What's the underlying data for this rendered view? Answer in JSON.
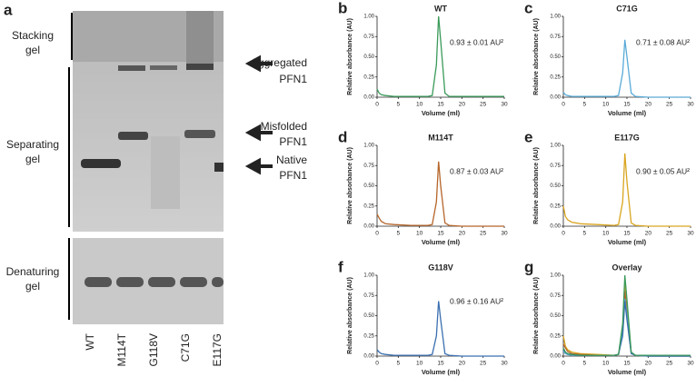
{
  "gel": {
    "panel_label": "a",
    "left_labels": [
      [
        "Stacking",
        "gel"
      ],
      [
        "Separating",
        "gel"
      ],
      [
        "Denaturing",
        "gel"
      ]
    ],
    "right_labels": [
      [
        "Aggregated",
        "PFN1"
      ],
      [
        "Misfolded",
        "PFN1"
      ],
      [
        "Native",
        "PFN1"
      ]
    ],
    "lanes": [
      "WT",
      "M114T",
      "G118V",
      "C71G",
      "E117G"
    ]
  },
  "chart_data": [
    {
      "type": "line",
      "panel_label": "b",
      "title": "WT",
      "annotation": "0.93 ± 0.01 AU²",
      "x_label": "Volume (ml)",
      "y_label": "Relative absorbance (AU)",
      "x": [
        0,
        0.5,
        1,
        2,
        4,
        8,
        12,
        13,
        14,
        14.5,
        15,
        16,
        17,
        20,
        25,
        30
      ],
      "color": "#3a9a5a",
      "values": [
        0.1,
        0.05,
        0.03,
        0.02,
        0.01,
        0.01,
        0.01,
        0.02,
        0.4,
        1.0,
        0.7,
        0.05,
        0.01,
        0.01,
        0.01,
        0.01
      ],
      "xlim": [
        0,
        30
      ],
      "xticks": [
        0,
        5,
        10,
        15,
        20,
        25,
        30
      ],
      "ylim": [
        0,
        1
      ],
      "yticks": [
        {
          "value": 0,
          "label": "0.00"
        },
        {
          "value": 0.25,
          "label": "0.25"
        },
        {
          "value": 0.5,
          "label": "0.50"
        },
        {
          "value": 0.75,
          "label": "0.75"
        },
        {
          "value": 1,
          "label": "1.00"
        }
      ]
    },
    {
      "type": "line",
      "panel_label": "c",
      "title": "C71G",
      "annotation": "0.71 ± 0.08 AU²",
      "x_label": "Volume (ml)",
      "y_label": "Relative absorbance (AU)",
      "x": [
        0,
        0.5,
        1,
        2,
        4,
        8,
        12,
        13,
        14,
        14.5,
        15,
        16,
        17,
        20,
        25,
        30
      ],
      "color": "#5aaad8",
      "values": [
        0.06,
        0.03,
        0.02,
        0.01,
        0.01,
        0.01,
        0.01,
        0.02,
        0.3,
        0.71,
        0.5,
        0.05,
        0.01,
        0,
        0,
        0
      ],
      "xlim": [
        0,
        30
      ],
      "xticks": [
        0,
        5,
        10,
        15,
        20,
        25,
        30
      ],
      "ylim": [
        0,
        1
      ],
      "yticks": [
        {
          "value": 0,
          "label": "0.00"
        },
        {
          "value": 0.25,
          "label": "0.25"
        },
        {
          "value": 0.5,
          "label": "0.50"
        },
        {
          "value": 0.75,
          "label": "0.75"
        },
        {
          "value": 1,
          "label": "1.00"
        }
      ]
    },
    {
      "type": "line",
      "panel_label": "d",
      "title": "M114T",
      "annotation": "0.87 ± 0.03 AU²",
      "x_label": "Volume (ml)",
      "y_label": "Relative absorbance (AU)",
      "x": [
        0,
        0.5,
        1,
        2,
        4,
        8,
        12,
        13,
        14,
        14.5,
        15,
        16,
        17,
        20,
        25,
        30
      ],
      "color": "#b5652a",
      "values": [
        0.15,
        0.1,
        0.06,
        0.03,
        0.02,
        0.01,
        0.01,
        0.02,
        0.3,
        0.8,
        0.5,
        0.04,
        0.01,
        0,
        0,
        0
      ],
      "xlim": [
        0,
        30
      ],
      "xticks": [
        0,
        5,
        10,
        15,
        20,
        25,
        30
      ],
      "ylim": [
        0,
        1
      ],
      "yticks": [
        {
          "value": 0,
          "label": "0.00"
        },
        {
          "value": 0.25,
          "label": "0.25"
        },
        {
          "value": 0.5,
          "label": "0.50"
        },
        {
          "value": 0.75,
          "label": "0.75"
        },
        {
          "value": 1,
          "label": "1.00"
        }
      ]
    },
    {
      "type": "line",
      "panel_label": "e",
      "title": "E117G",
      "annotation": "0.90 ± 0.05 AU²",
      "x_label": "Volume (ml)",
      "y_label": "Relative absorbance (AU)",
      "x": [
        0,
        0.5,
        1,
        2,
        4,
        8,
        12,
        13,
        14,
        14.5,
        15,
        16,
        17,
        20,
        25,
        30
      ],
      "color": "#d9a520",
      "values": [
        0.25,
        0.12,
        0.08,
        0.05,
        0.03,
        0.02,
        0.01,
        0.02,
        0.3,
        0.9,
        0.55,
        0.04,
        0.01,
        0,
        0,
        0
      ],
      "xlim": [
        0,
        30
      ],
      "xticks": [
        0,
        5,
        10,
        15,
        20,
        25,
        30
      ],
      "ylim": [
        0,
        1
      ],
      "yticks": [
        {
          "value": 0,
          "label": "0.00"
        },
        {
          "value": 0.25,
          "label": "0.25"
        },
        {
          "value": 0.5,
          "label": "0.50"
        },
        {
          "value": 0.75,
          "label": "0.75"
        },
        {
          "value": 1,
          "label": "1.00"
        }
      ]
    },
    {
      "type": "line",
      "panel_label": "f",
      "title": "G118V",
      "annotation": "0.96 ± 0.16 AU²",
      "x_label": "Volume (ml)",
      "y_label": "Relative absorbance (AU)",
      "x": [
        0,
        0.5,
        1,
        2,
        4,
        8,
        12,
        13,
        14,
        14.5,
        15,
        16,
        17,
        20,
        25,
        30
      ],
      "color": "#3a6fb0",
      "values": [
        0.08,
        0.05,
        0.03,
        0.02,
        0.01,
        0.01,
        0.01,
        0.02,
        0.25,
        0.68,
        0.45,
        0.03,
        0.01,
        0,
        0,
        0
      ],
      "xlim": [
        0,
        30
      ],
      "xticks": [
        0,
        5,
        10,
        15,
        20,
        25,
        30
      ],
      "ylim": [
        0,
        1
      ],
      "yticks": [
        {
          "value": 0,
          "label": "0.00"
        },
        {
          "value": 0.25,
          "label": "0.25"
        },
        {
          "value": 0.5,
          "label": "0.50"
        },
        {
          "value": 0.75,
          "label": "0.75"
        },
        {
          "value": 1,
          "label": "1.00"
        }
      ]
    },
    {
      "type": "line",
      "panel_label": "g",
      "title": "Overlay",
      "x_label": "Volume (ml)",
      "y_label": "Relative absorbance (AU)",
      "x": [
        0,
        0.5,
        1,
        2,
        4,
        8,
        12,
        13,
        14,
        14.5,
        15,
        16,
        17,
        20,
        25,
        30
      ],
      "series": [
        {
          "color": "#d9a520",
          "values": [
            0.25,
            0.12,
            0.08,
            0.05,
            0.03,
            0.02,
            0.01,
            0.02,
            0.3,
            0.9,
            0.55,
            0.04,
            0.01,
            0,
            0,
            0
          ]
        },
        {
          "color": "#b5652a",
          "values": [
            0.15,
            0.1,
            0.06,
            0.03,
            0.02,
            0.01,
            0.01,
            0.02,
            0.3,
            0.8,
            0.5,
            0.04,
            0.01,
            0,
            0,
            0
          ]
        },
        {
          "color": "#5aaad8",
          "values": [
            0.06,
            0.03,
            0.02,
            0.01,
            0.01,
            0.01,
            0.01,
            0.02,
            0.3,
            0.71,
            0.5,
            0.05,
            0.01,
            0,
            0,
            0
          ]
        },
        {
          "color": "#3a6fb0",
          "values": [
            0.08,
            0.05,
            0.03,
            0.02,
            0.01,
            0.01,
            0.01,
            0.02,
            0.25,
            0.68,
            0.45,
            0.03,
            0.01,
            0,
            0,
            0
          ]
        },
        {
          "color": "#3a9a5a",
          "values": [
            0.1,
            0.05,
            0.03,
            0.02,
            0.01,
            0.01,
            0.01,
            0.02,
            0.4,
            1.0,
            0.7,
            0.05,
            0.01,
            0.01,
            0.01,
            0.01
          ]
        }
      ],
      "xlim": [
        0,
        30
      ],
      "xticks": [
        0,
        5,
        10,
        15,
        20,
        25,
        30
      ],
      "ylim": [
        0,
        1
      ],
      "yticks": [
        {
          "value": 0,
          "label": "0.00"
        },
        {
          "value": 0.25,
          "label": "0.25"
        },
        {
          "value": 0.5,
          "label": "0.50"
        },
        {
          "value": 0.75,
          "label": "0.75"
        },
        {
          "value": 1,
          "label": "1.00"
        }
      ]
    }
  ]
}
